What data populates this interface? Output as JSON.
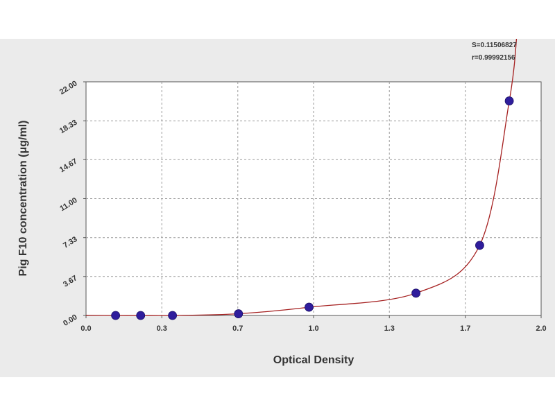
{
  "chart_data": {
    "type": "scatter",
    "xlabel": "Optical Density",
    "ylabel": "Pig F10 concentration (μg/ml)",
    "xlim": [
      0,
      2.0
    ],
    "ylim": [
      0,
      22.0
    ],
    "x_ticks": [
      "0.0",
      "0.3",
      "0.7",
      "1.0",
      "1.3",
      "1.7",
      "2.0"
    ],
    "x_tick_values": [
      0,
      0.333,
      0.667,
      1.0,
      1.333,
      1.667,
      2.0
    ],
    "y_ticks": [
      "0.00",
      "3.67",
      "7.33",
      "11.00",
      "14.67",
      "18.33",
      "22.00"
    ],
    "y_tick_values": [
      0,
      3.67,
      7.33,
      11.0,
      14.67,
      18.33,
      22.0
    ],
    "grid": true,
    "series": [
      {
        "x": [
          0.13,
          0.24,
          0.38,
          0.67,
          0.98,
          1.45,
          1.73,
          1.86
        ],
        "y": [
          0.0,
          0.0,
          0.0,
          0.16,
          0.78,
          2.1,
          6.6,
          20.2
        ],
        "marker_color": "#2f1d9c"
      }
    ],
    "fit_curve_color": "#a52020",
    "stats": [
      "S=0.11506827",
      "r=0.99992156"
    ]
  }
}
